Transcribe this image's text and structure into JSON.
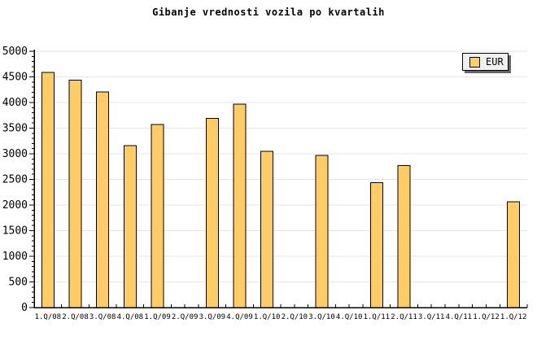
{
  "title": "Gibanje vrednosti vozila po kvartalih",
  "legend": {
    "label": "EUR",
    "swatch_color": "#FFCC66",
    "position": "top-right"
  },
  "colors": {
    "background": "#FFFFFF",
    "bar_fill": "#FFCC66",
    "bar_border": "#000000",
    "grid": "#E6E6E6",
    "axis": "#000000",
    "text": "#000000",
    "legend_bg": "#F0F0F0",
    "legend_shadow": "#666666"
  },
  "chart_data": {
    "type": "bar",
    "title": "Gibanje vrednosti vozila po kvartalih",
    "categories": [
      "1.Q/08",
      "2.Q/08",
      "3.Q/08",
      "4.Q/08",
      "1.Q/09",
      "2.Q/09",
      "3.Q/09",
      "4.Q/09",
      "1.Q/10",
      "2.Q/10",
      "3.Q/10",
      "4.Q/10",
      "1.Q/11",
      "2.Q/11",
      "3.Q/11",
      "4.Q/11",
      "1.Q/12",
      "1.Q/12"
    ],
    "series": [
      {
        "name": "EUR",
        "values": [
          4590,
          4440,
          4210,
          3160,
          3570,
          null,
          3690,
          3970,
          3050,
          null,
          2970,
          null,
          2440,
          2770,
          null,
          null,
          null,
          2060
        ]
      }
    ],
    "xlabel": "",
    "ylabel": "",
    "ylim": [
      0,
      5000
    ],
    "y_ticks": [
      0,
      500,
      1000,
      1500,
      2000,
      2500,
      3000,
      3500,
      4000,
      4500,
      5000
    ],
    "ytick_minor_step": 100,
    "grid": true,
    "legend_position": "top-right"
  }
}
